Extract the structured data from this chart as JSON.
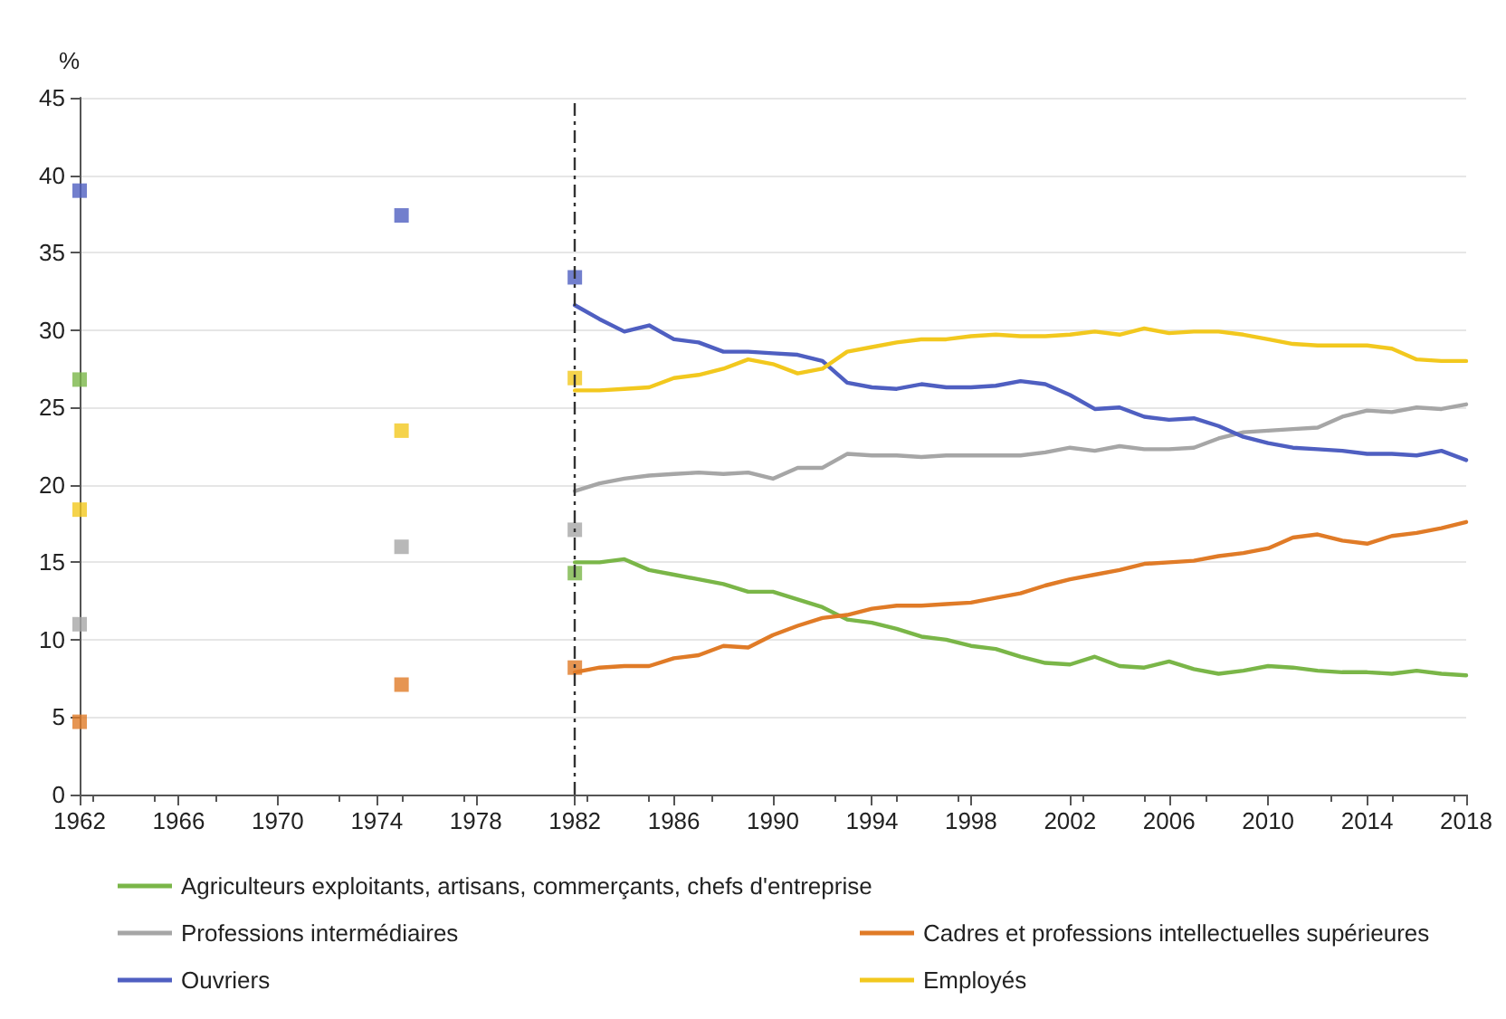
{
  "chart_data": {
    "type": "line",
    "ylabel": "%",
    "xlim": [
      1962,
      2018
    ],
    "xticks": [
      1962,
      1966,
      1970,
      1974,
      1978,
      1982,
      1986,
      1990,
      1994,
      1998,
      2002,
      2006,
      2010,
      2014,
      2018
    ],
    "ylim": [
      0,
      45
    ],
    "yticks": [
      0,
      5,
      10,
      15,
      20,
      25,
      30,
      35,
      40,
      45
    ],
    "grid": "y",
    "legend": "bottom",
    "marker": "none",
    "line_style": "solid",
    "ref_lines": [
      {
        "axis": "x",
        "value": 1982,
        "color": "#333333",
        "line_style": "dashed"
      }
    ],
    "series": [
      {
        "name": "Agriculteurs exploitants, artisans, commerçants, chefs d'entreprise",
        "color": "#7ab648",
        "x": [
          1982,
          1983,
          1984,
          1985,
          1986,
          1987,
          1988,
          1989,
          1990,
          1991,
          1992,
          1993,
          1994,
          1995,
          1996,
          1997,
          1998,
          1999,
          2000,
          2001,
          2002,
          2003,
          2004,
          2005,
          2006,
          2007,
          2008,
          2009,
          2010,
          2011,
          2012,
          2013,
          2014,
          2015,
          2016,
          2017,
          2018
        ],
        "values": [
          15.0,
          15.0,
          15.2,
          14.5,
          14.2,
          13.9,
          13.6,
          13.1,
          13.1,
          12.6,
          12.1,
          11.3,
          11.1,
          10.7,
          10.2,
          10.0,
          9.6,
          9.4,
          8.9,
          8.5,
          8.4,
          8.9,
          8.3,
          8.2,
          8.6,
          8.1,
          7.8,
          8.0,
          8.3,
          8.2,
          8.0,
          7.9,
          7.9,
          7.8,
          8.0,
          7.8,
          7.7
        ]
      },
      {
        "name": "Professions intermédiaires",
        "color": "#a6a6a6",
        "x": [
          1982,
          1983,
          1984,
          1985,
          1986,
          1987,
          1988,
          1989,
          1990,
          1991,
          1992,
          1993,
          1994,
          1995,
          1996,
          1997,
          1998,
          1999,
          2000,
          2001,
          2002,
          2003,
          2004,
          2005,
          2006,
          2007,
          2008,
          2009,
          2010,
          2011,
          2012,
          2013,
          2014,
          2015,
          2016,
          2017,
          2018
        ],
        "values": [
          19.6,
          20.1,
          20.4,
          20.6,
          20.7,
          20.8,
          20.7,
          20.8,
          20.4,
          21.1,
          21.1,
          22.0,
          21.9,
          21.9,
          21.8,
          21.9,
          21.9,
          21.9,
          21.9,
          22.1,
          22.4,
          22.2,
          22.5,
          22.3,
          22.3,
          22.4,
          23.0,
          23.4,
          23.5,
          23.6,
          23.7,
          24.4,
          24.8,
          24.7,
          25.0,
          24.9,
          25.2
        ]
      },
      {
        "name": "Cadres et professions intellectuelles supérieures",
        "color": "#e07b27",
        "x": [
          1982,
          1983,
          1984,
          1985,
          1986,
          1987,
          1988,
          1989,
          1990,
          1991,
          1992,
          1993,
          1994,
          1995,
          1996,
          1997,
          1998,
          1999,
          2000,
          2001,
          2002,
          2003,
          2004,
          2005,
          2006,
          2007,
          2008,
          2009,
          2010,
          2011,
          2012,
          2013,
          2014,
          2015,
          2016,
          2017,
          2018
        ],
        "values": [
          7.9,
          8.2,
          8.3,
          8.3,
          8.8,
          9.0,
          9.6,
          9.5,
          10.3,
          10.9,
          11.4,
          11.6,
          12.0,
          12.2,
          12.2,
          12.3,
          12.4,
          12.7,
          13.0,
          13.5,
          13.9,
          14.2,
          14.5,
          14.9,
          15.0,
          15.1,
          15.4,
          15.6,
          15.9,
          16.6,
          16.8,
          16.4,
          16.2,
          16.7,
          16.9,
          17.2,
          17.6
        ]
      },
      {
        "name": "Ouvriers",
        "color": "#4f5fc1",
        "x": [
          1982,
          1983,
          1984,
          1985,
          1986,
          1987,
          1988,
          1989,
          1990,
          1991,
          1992,
          1993,
          1994,
          1995,
          1996,
          1997,
          1998,
          1999,
          2000,
          2001,
          2002,
          2003,
          2004,
          2005,
          2006,
          2007,
          2008,
          2009,
          2010,
          2011,
          2012,
          2013,
          2014,
          2015,
          2016,
          2017,
          2018
        ],
        "values": [
          31.6,
          30.7,
          29.9,
          30.3,
          29.4,
          29.2,
          28.6,
          28.6,
          28.5,
          28.4,
          28.0,
          26.6,
          26.3,
          26.2,
          26.5,
          26.3,
          26.3,
          26.4,
          26.7,
          26.5,
          25.8,
          24.9,
          25.0,
          24.4,
          24.2,
          24.3,
          23.8,
          23.1,
          22.7,
          22.4,
          22.3,
          22.2,
          22.0,
          22.0,
          21.9,
          22.2,
          21.6
        ]
      },
      {
        "name": "Employés",
        "color": "#f2c81e",
        "x": [
          1982,
          1983,
          1984,
          1985,
          1986,
          1987,
          1988,
          1989,
          1990,
          1991,
          1992,
          1993,
          1994,
          1995,
          1996,
          1997,
          1998,
          1999,
          2000,
          2001,
          2002,
          2003,
          2004,
          2005,
          2006,
          2007,
          2008,
          2009,
          2010,
          2011,
          2012,
          2013,
          2014,
          2015,
          2016,
          2017,
          2018
        ],
        "values": [
          26.1,
          26.1,
          26.2,
          26.3,
          26.9,
          27.1,
          27.5,
          28.1,
          27.8,
          27.2,
          27.5,
          28.6,
          28.9,
          29.2,
          29.4,
          29.4,
          29.6,
          29.7,
          29.6,
          29.6,
          29.7,
          29.9,
          29.7,
          30.1,
          29.8,
          29.9,
          29.9,
          29.7,
          29.4,
          29.1,
          29.0,
          29.0,
          29.0,
          28.8,
          28.1,
          28.0,
          28.0
        ]
      },
      {
        "type": "scatter",
        "marker": "square",
        "color": "#7ab648",
        "x": [
          1962,
          1975,
          1982
        ],
        "values": [
          26.8,
          null,
          14.3
        ]
      },
      {
        "type": "scatter",
        "marker": "square",
        "color": "#a6a6a6",
        "x": [
          1962,
          1975,
          1982
        ],
        "values": [
          11.0,
          16.0,
          17.1
        ]
      },
      {
        "type": "scatter",
        "marker": "square",
        "color": "#e07b27",
        "x": [
          1962,
          1975,
          1982
        ],
        "values": [
          4.7,
          7.1,
          8.2
        ]
      },
      {
        "type": "scatter",
        "marker": "square",
        "color": "#4f5fc1",
        "x": [
          1962,
          1975,
          1982
        ],
        "values": [
          39.0,
          37.4,
          33.4
        ]
      },
      {
        "type": "scatter",
        "marker": "square",
        "color": "#f2c81e",
        "x": [
          1962,
          1975,
          1982
        ],
        "values": [
          18.4,
          23.5,
          26.9
        ]
      }
    ]
  }
}
